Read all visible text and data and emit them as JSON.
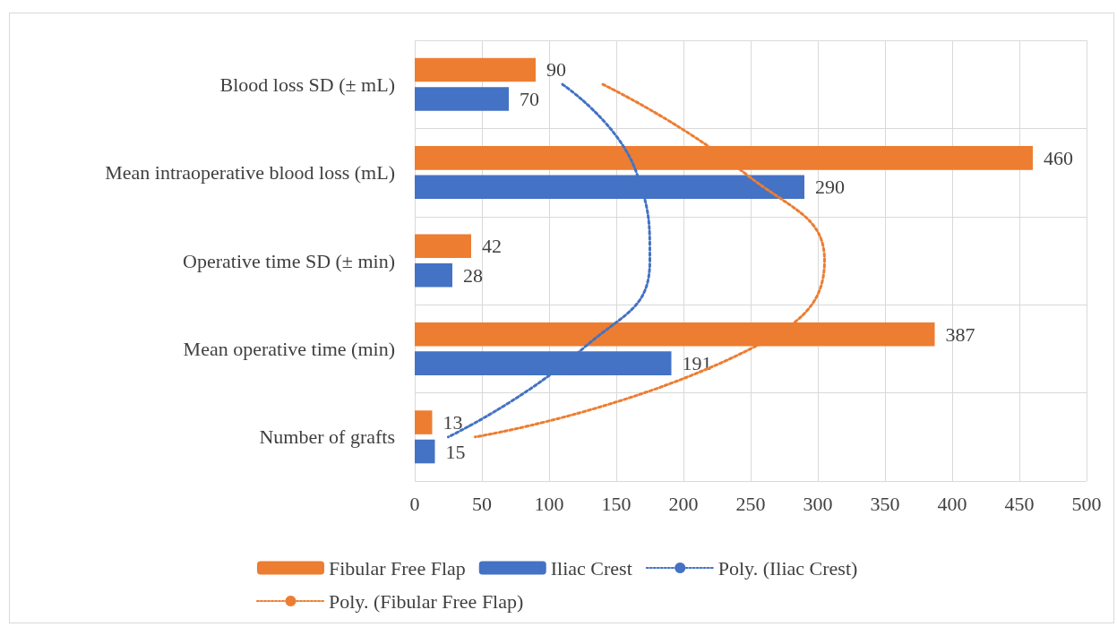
{
  "chart_data": {
    "type": "bar",
    "orientation": "horizontal",
    "categories": [
      "Blood loss SD (± mL)",
      "Mean intraoperative blood loss (mL)",
      "Operative time SD (± min)",
      "Mean operative time (min)",
      "Number of grafts"
    ],
    "series": [
      {
        "name": "Fibular Free Flap",
        "color": "#ed7d31",
        "values": [
          90,
          460,
          42,
          387,
          13
        ],
        "value_labels": [
          "90",
          "460",
          "42",
          "387",
          "13"
        ]
      },
      {
        "name": "Iliac Crest",
        "color": "#4472c4",
        "values": [
          70,
          290,
          28,
          191,
          15
        ],
        "value_labels": [
          "70",
          "290",
          "28",
          "191",
          "15"
        ]
      },
      {
        "name": "Poly. (Iliac Crest)",
        "type": "line",
        "color": "#4472c4",
        "line_style": "dotted",
        "marker": "none",
        "values": [
          110,
          165,
          175,
          125,
          25
        ]
      },
      {
        "name": "Poly. (Fibular Free Flap)",
        "type": "line",
        "color": "#ed7d31",
        "line_style": "dotted",
        "marker": "none",
        "values": [
          140,
          245,
          305,
          250,
          45
        ]
      }
    ],
    "xlim": [
      0,
      500
    ],
    "xticks": [
      0,
      50,
      100,
      150,
      200,
      250,
      300,
      350,
      400,
      450,
      500
    ],
    "grid": true,
    "legend": "bottom"
  }
}
